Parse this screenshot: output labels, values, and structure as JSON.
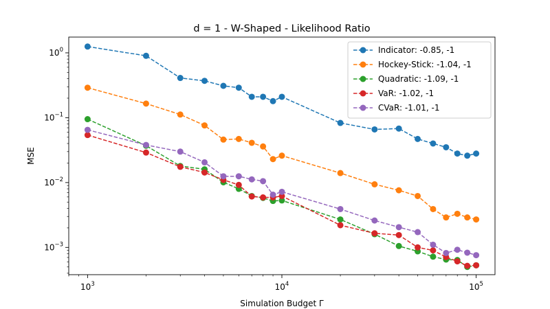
{
  "chart_data": {
    "type": "line",
    "title": "d = 1 - W-Shaped - Likelihood Ratio",
    "xlabel": "Simulation Budget Γ",
    "ylabel": "MSE",
    "xscale": "log",
    "yscale": "log",
    "xlim": [
      800,
      125000
    ],
    "ylim": [
      0.00038,
      1.75
    ],
    "grid": false,
    "legend_position": "top-right",
    "x_ticks": [
      {
        "value": 1000,
        "base": "10",
        "exp": "3"
      },
      {
        "value": 10000,
        "base": "10",
        "exp": "4"
      },
      {
        "value": 100000,
        "base": "10",
        "exp": "5"
      }
    ],
    "y_ticks": [
      {
        "value": 0.001,
        "base": "10",
        "exp": "−3"
      },
      {
        "value": 0.01,
        "base": "10",
        "exp": "−2"
      },
      {
        "value": 0.1,
        "base": "10",
        "exp": "−1"
      },
      {
        "value": 1,
        "base": "10",
        "exp": "0"
      }
    ],
    "x": [
      1000,
      2000,
      3000,
      4000,
      5000,
      6000,
      7000,
      8000,
      9000,
      10000,
      20000,
      30000,
      40000,
      50000,
      60000,
      70000,
      80000,
      90000,
      100000
    ],
    "series": [
      {
        "name": "Indicator: -0.85, -1",
        "color": "#1f77b4",
        "values": [
          1.25,
          0.9,
          0.41,
          0.37,
          0.31,
          0.29,
          0.21,
          0.21,
          0.18,
          0.21,
          0.083,
          0.066,
          0.068,
          0.047,
          0.04,
          0.035,
          0.028,
          0.026,
          0.028
        ]
      },
      {
        "name": "Hockey-Stick: -1.04, -1",
        "color": "#ff7f0e",
        "values": [
          0.29,
          0.165,
          0.112,
          0.076,
          0.046,
          0.047,
          0.041,
          0.036,
          0.023,
          0.026,
          0.014,
          0.0094,
          0.0076,
          0.0062,
          0.0039,
          0.0029,
          0.0033,
          0.0029,
          0.0027
        ]
      },
      {
        "name": "Quadratic: -1.09, -1",
        "color": "#2ca02c",
        "values": [
          0.095,
          0.037,
          0.018,
          0.016,
          0.0101,
          0.008,
          0.0062,
          0.0058,
          0.0052,
          0.0053,
          0.0027,
          0.0016,
          0.00105,
          0.00087,
          0.00072,
          0.00065,
          0.00064,
          0.0005,
          0.00053
        ]
      },
      {
        "name": "VaR: -1.02, -1",
        "color": "#d62728",
        "values": [
          0.054,
          0.029,
          0.0175,
          0.0143,
          0.011,
          0.0092,
          0.0061,
          0.0059,
          0.0059,
          0.0062,
          0.0022,
          0.00165,
          0.00155,
          0.001,
          0.0009,
          0.00071,
          0.00061,
          0.00052,
          0.00053
        ]
      },
      {
        "name": "CVaR: -1.01, -1",
        "color": "#9467bd",
        "values": [
          0.065,
          0.038,
          0.03,
          0.0205,
          0.0125,
          0.0125,
          0.0112,
          0.0105,
          0.0065,
          0.0072,
          0.0039,
          0.0026,
          0.00205,
          0.00172,
          0.0011,
          0.00082,
          0.00092,
          0.00083,
          0.00076
        ]
      }
    ]
  }
}
